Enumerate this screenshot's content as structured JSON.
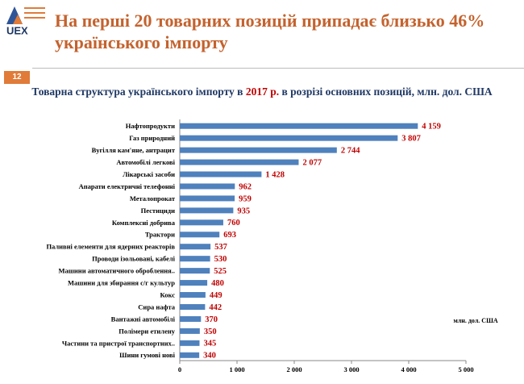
{
  "slide": {
    "logo": "UEX",
    "title_lines": [
      "На перші 20 товарних позицій припадає близько 46%",
      "українського імпорту"
    ],
    "number": "12",
    "subtitle_before": "Товарна структура українського імпорту в ",
    "subtitle_year": "2017 р.",
    "subtitle_after": " в розрізі основних позицій, млн. дол. США"
  },
  "chart_data": {
    "type": "hbar",
    "categories": [
      "Нафтопродукти",
      "Газ природний",
      "Вугілля кам'яне, антрацит",
      "Автомобілі легкові",
      "Лікарські засоби",
      "Апарати електричні телефонні",
      "Металопрокат",
      "Пестициди",
      "Комплексні добрива",
      "Трактори",
      "Паливні елементи для ядерних реакторів",
      "Проводи ізольовані, кабелі",
      "Машини автоматичного оброблення..",
      "Машини для збирання с/г культур",
      "Кокс",
      "Сира нафта",
      "Вантажні автомобілі",
      "Полімери етилену",
      "Частини та пристрої транспортних..",
      "Шини гумові нові"
    ],
    "values": [
      4159,
      3807,
      2744,
      2077,
      1428,
      962,
      959,
      935,
      760,
      693,
      537,
      530,
      525,
      480,
      449,
      442,
      370,
      350,
      345,
      340
    ],
    "value_labels": [
      "4 159",
      "3 807",
      "2 744",
      "2 077",
      "1 428",
      "962",
      "959",
      "935",
      "760",
      "693",
      "537",
      "530",
      "525",
      "480",
      "449",
      "442",
      "370",
      "350",
      "345",
      "340"
    ],
    "color": "#4f81bd",
    "label_color": "#c00000",
    "xlim": [
      0,
      5000
    ],
    "xticks": [
      0,
      {
        "value": 1000,
        "label": "1 000"
      },
      {
        "value": 2000,
        "label": "2 000"
      },
      {
        "value": 3000,
        "label": "3 000"
      },
      {
        "value": 4000,
        "label": "4 000"
      },
      {
        "value": 5000,
        "label": "5 000"
      }
    ],
    "unit_note": "млн. дол. США"
  }
}
